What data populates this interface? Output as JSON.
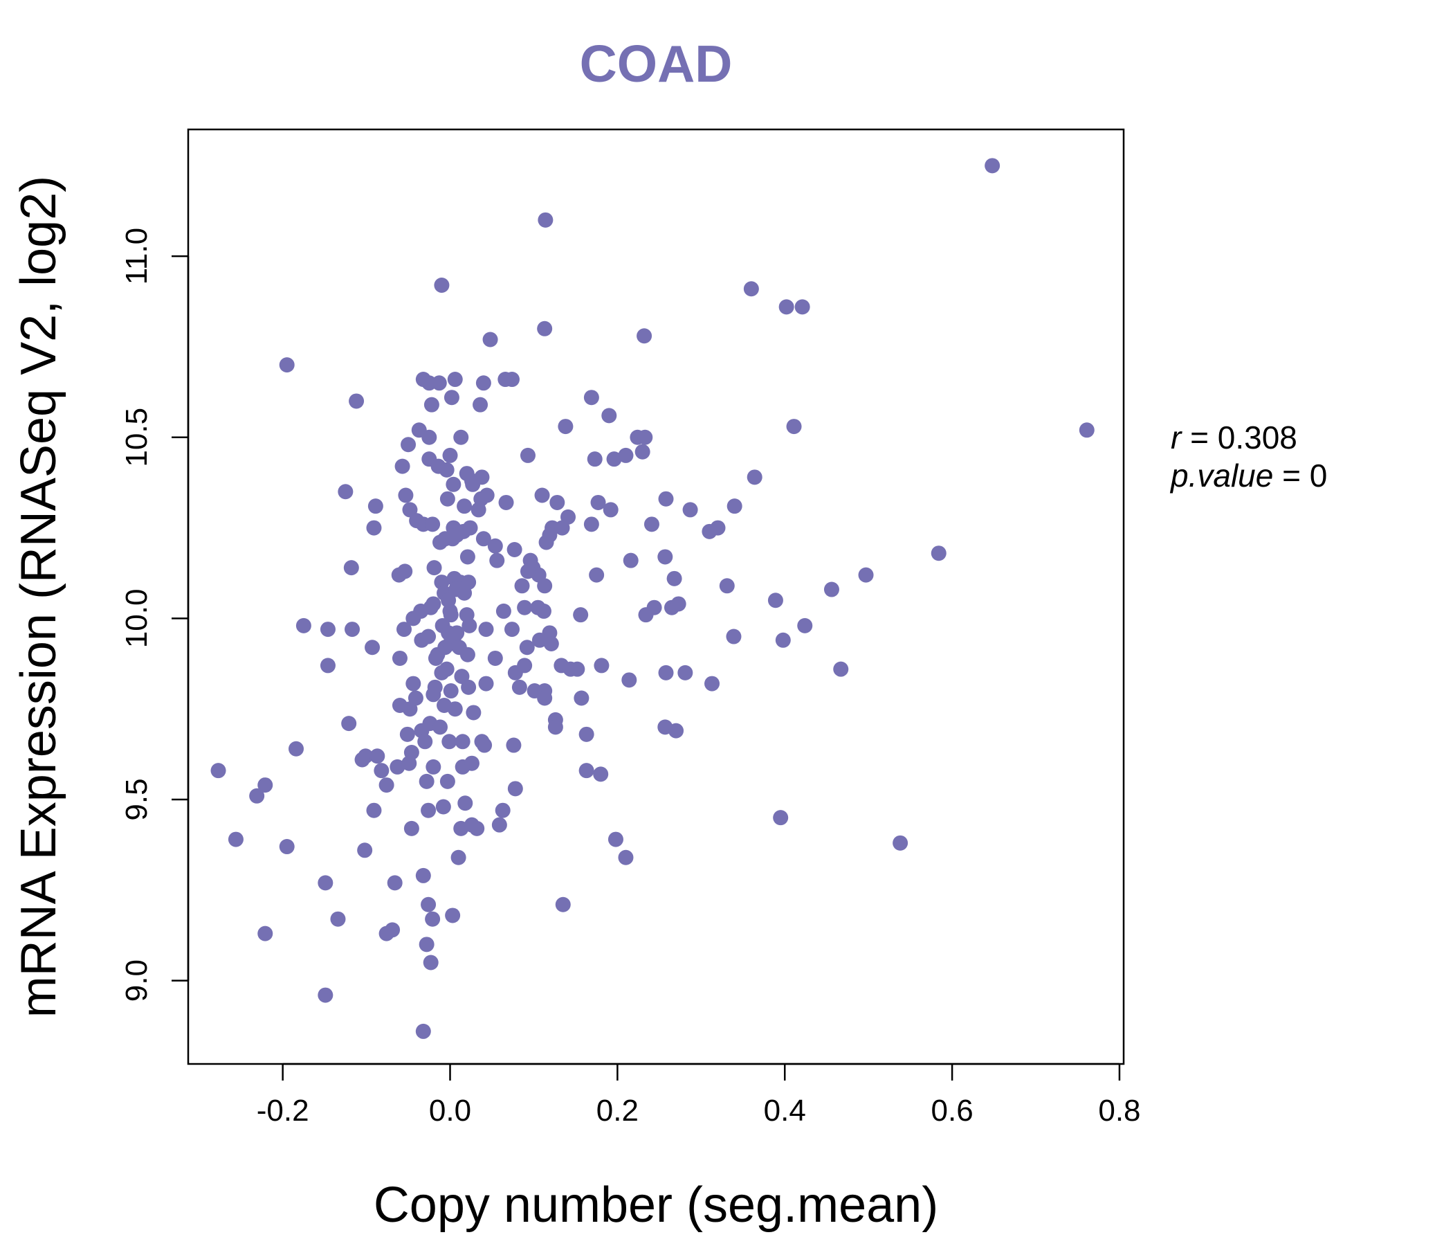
{
  "colors": {
    "point": "#7570b3",
    "title": "#7570b3",
    "axis": "#000000"
  },
  "stats": {
    "r_label": "r",
    "r_value": "0.308",
    "p_label": "p.value",
    "p_value": "0"
  },
  "chart_data": {
    "type": "scatter",
    "title": "COAD",
    "xlabel": "Copy number (seg.mean)",
    "ylabel": "mRNA Expression (RNASeq V2, log2)",
    "xlim": [
      -0.313,
      0.805
    ],
    "ylim": [
      8.77,
      11.35
    ],
    "x_ticks": [
      -0.2,
      0.0,
      0.2,
      0.4,
      0.6,
      0.8
    ],
    "x_tick_labels": [
      "-0.2",
      "0.0",
      "0.2",
      "0.4",
      "0.6",
      "0.8"
    ],
    "y_ticks": [
      9.0,
      9.5,
      10.0,
      10.5,
      11.0
    ],
    "y_tick_labels": [
      "9.0",
      "9.5",
      "10.0",
      "10.5",
      "11.0"
    ],
    "grid": false,
    "points": [
      [
        0.648,
        11.25
      ],
      [
        0.114,
        11.1
      ],
      [
        -0.01,
        10.92
      ],
      [
        0.36,
        10.91
      ],
      [
        0.402,
        10.86
      ],
      [
        0.421,
        10.86
      ],
      [
        -0.195,
        10.7
      ],
      [
        0.113,
        10.8
      ],
      [
        0.232,
        10.78
      ],
      [
        0.048,
        10.77
      ],
      [
        -0.032,
        10.66
      ],
      [
        -0.025,
        10.65
      ],
      [
        -0.013,
        10.65
      ],
      [
        0.006,
        10.66
      ],
      [
        0.04,
        10.65
      ],
      [
        0.066,
        10.66
      ],
      [
        0.074,
        10.66
      ],
      [
        -0.112,
        10.6
      ],
      [
        -0.022,
        10.59
      ],
      [
        0.002,
        10.61
      ],
      [
        0.036,
        10.59
      ],
      [
        0.169,
        10.61
      ],
      [
        0.19,
        10.56
      ],
      [
        0.411,
        10.53
      ],
      [
        0.761,
        10.52
      ],
      [
        -0.037,
        10.52
      ],
      [
        -0.025,
        10.5
      ],
      [
        -0.05,
        10.48
      ],
      [
        0.013,
        10.5
      ],
      [
        0.138,
        10.53
      ],
      [
        0.224,
        10.5
      ],
      [
        0.233,
        10.5
      ],
      [
        0.23,
        10.46
      ],
      [
        -0.057,
        10.42
      ],
      [
        -0.025,
        10.44
      ],
      [
        -0.014,
        10.42
      ],
      [
        -0.004,
        10.41
      ],
      [
        0.0,
        10.45
      ],
      [
        0.02,
        10.4
      ],
      [
        0.026,
        10.38
      ],
      [
        0.038,
        10.39
      ],
      [
        0.093,
        10.45
      ],
      [
        0.173,
        10.44
      ],
      [
        0.196,
        10.44
      ],
      [
        0.21,
        10.45
      ],
      [
        -0.125,
        10.35
      ],
      [
        -0.053,
        10.34
      ],
      [
        0.004,
        10.37
      ],
      [
        0.017,
        10.31
      ],
      [
        0.027,
        10.37
      ],
      [
        0.044,
        10.34
      ],
      [
        0.067,
        10.32
      ],
      [
        0.11,
        10.34
      ],
      [
        0.128,
        10.32
      ],
      [
        0.177,
        10.32
      ],
      [
        0.258,
        10.33
      ],
      [
        0.364,
        10.39
      ],
      [
        -0.089,
        10.31
      ],
      [
        -0.048,
        10.3
      ],
      [
        -0.04,
        10.27
      ],
      [
        -0.032,
        10.26
      ],
      [
        -0.021,
        10.26
      ],
      [
        -0.003,
        10.33
      ],
      [
        0.004,
        10.25
      ],
      [
        0.016,
        10.24
      ],
      [
        0.024,
        10.25
      ],
      [
        0.034,
        10.3
      ],
      [
        0.037,
        10.33
      ],
      [
        0.141,
        10.28
      ],
      [
        0.169,
        10.26
      ],
      [
        0.192,
        10.3
      ],
      [
        0.241,
        10.26
      ],
      [
        0.287,
        10.3
      ],
      [
        0.31,
        10.24
      ],
      [
        0.32,
        10.25
      ],
      [
        0.34,
        10.31
      ],
      [
        -0.091,
        10.25
      ],
      [
        -0.012,
        10.21
      ],
      [
        -0.006,
        10.22
      ],
      [
        0.003,
        10.22
      ],
      [
        0.008,
        10.23
      ],
      [
        0.04,
        10.22
      ],
      [
        0.054,
        10.2
      ],
      [
        0.077,
        10.19
      ],
      [
        0.115,
        10.21
      ],
      [
        0.122,
        10.25
      ],
      [
        0.134,
        10.25
      ],
      [
        0.119,
        10.23
      ],
      [
        0.257,
        10.17
      ],
      [
        0.584,
        10.18
      ],
      [
        -0.118,
        10.14
      ],
      [
        -0.061,
        10.12
      ],
      [
        -0.054,
        10.13
      ],
      [
        -0.019,
        10.14
      ],
      [
        -0.01,
        10.1
      ],
      [
        0.005,
        10.11
      ],
      [
        0.012,
        10.1
      ],
      [
        0.021,
        10.17
      ],
      [
        0.022,
        10.1
      ],
      [
        0.056,
        10.16
      ],
      [
        0.096,
        10.16
      ],
      [
        0.099,
        10.14
      ],
      [
        0.106,
        10.12
      ],
      [
        0.093,
        10.13
      ],
      [
        0.175,
        10.12
      ],
      [
        0.216,
        10.16
      ],
      [
        0.497,
        10.12
      ],
      [
        -0.007,
        10.07
      ],
      [
        -0.002,
        10.05
      ],
      [
        0.007,
        10.08
      ],
      [
        0.017,
        10.07
      ],
      [
        0.086,
        10.09
      ],
      [
        0.113,
        10.09
      ],
      [
        0.268,
        10.11
      ],
      [
        0.331,
        10.09
      ],
      [
        0.456,
        10.08
      ],
      [
        0.244,
        10.03
      ],
      [
        0.265,
        10.03
      ],
      [
        0.273,
        10.04
      ],
      [
        0.389,
        10.05
      ],
      [
        -0.035,
        10.02
      ],
      [
        -0.023,
        10.03
      ],
      [
        -0.02,
        10.04
      ],
      [
        0.0,
        10.02
      ],
      [
        0.001,
        10.01
      ],
      [
        0.02,
        10.01
      ],
      [
        0.064,
        10.02
      ],
      [
        0.089,
        10.03
      ],
      [
        0.105,
        10.03
      ],
      [
        0.112,
        10.02
      ],
      [
        0.156,
        10.01
      ],
      [
        0.234,
        10.01
      ],
      [
        -0.044,
        10.0
      ],
      [
        -0.175,
        9.98
      ],
      [
        -0.146,
        9.97
      ],
      [
        -0.117,
        9.97
      ],
      [
        -0.055,
        9.97
      ],
      [
        -0.009,
        9.98
      ],
      [
        -0.002,
        9.96
      ],
      [
        0.008,
        9.96
      ],
      [
        0.023,
        9.98
      ],
      [
        0.043,
        9.97
      ],
      [
        0.074,
        9.97
      ],
      [
        0.119,
        9.96
      ],
      [
        0.424,
        9.98
      ],
      [
        -0.093,
        9.92
      ],
      [
        -0.06,
        9.89
      ],
      [
        -0.034,
        9.94
      ],
      [
        -0.026,
        9.95
      ],
      [
        -0.015,
        9.9
      ],
      [
        -0.006,
        9.92
      ],
      [
        0.0,
        9.93
      ],
      [
        0.005,
        9.95
      ],
      [
        0.011,
        9.92
      ],
      [
        0.021,
        9.9
      ],
      [
        0.054,
        9.89
      ],
      [
        0.092,
        9.92
      ],
      [
        0.107,
        9.94
      ],
      [
        0.121,
        9.93
      ],
      [
        0.339,
        9.95
      ],
      [
        0.398,
        9.94
      ],
      [
        -0.146,
        9.87
      ],
      [
        -0.017,
        9.89
      ],
      [
        -0.01,
        9.85
      ],
      [
        -0.004,
        9.86
      ],
      [
        0.014,
        9.84
      ],
      [
        0.078,
        9.85
      ],
      [
        0.089,
        9.87
      ],
      [
        0.133,
        9.87
      ],
      [
        0.144,
        9.86
      ],
      [
        0.152,
        9.86
      ],
      [
        0.181,
        9.87
      ],
      [
        0.258,
        9.85
      ],
      [
        0.281,
        9.85
      ],
      [
        0.467,
        9.86
      ],
      [
        -0.044,
        9.82
      ],
      [
        -0.018,
        9.81
      ],
      [
        0.001,
        9.8
      ],
      [
        0.022,
        9.81
      ],
      [
        0.043,
        9.82
      ],
      [
        0.083,
        9.81
      ],
      [
        0.101,
        9.8
      ],
      [
        0.113,
        9.8
      ],
      [
        0.157,
        9.78
      ],
      [
        0.214,
        9.83
      ],
      [
        0.313,
        9.82
      ],
      [
        -0.06,
        9.76
      ],
      [
        -0.048,
        9.75
      ],
      [
        -0.041,
        9.78
      ],
      [
        -0.02,
        9.79
      ],
      [
        -0.007,
        9.76
      ],
      [
        0.006,
        9.75
      ],
      [
        0.028,
        9.74
      ],
      [
        0.113,
        9.78
      ],
      [
        0.126,
        9.72
      ],
      [
        -0.121,
        9.71
      ],
      [
        -0.051,
        9.68
      ],
      [
        -0.034,
        9.69
      ],
      [
        -0.024,
        9.71
      ],
      [
        -0.012,
        9.7
      ],
      [
        0.126,
        9.7
      ],
      [
        0.257,
        9.7
      ],
      [
        0.27,
        9.69
      ],
      [
        0.163,
        9.68
      ],
      [
        -0.184,
        9.64
      ],
      [
        -0.101,
        9.62
      ],
      [
        -0.087,
        9.62
      ],
      [
        -0.046,
        9.63
      ],
      [
        -0.03,
        9.66
      ],
      [
        -0.001,
        9.66
      ],
      [
        0.015,
        9.66
      ],
      [
        0.038,
        9.66
      ],
      [
        0.041,
        9.65
      ],
      [
        0.076,
        9.65
      ],
      [
        -0.277,
        9.58
      ],
      [
        -0.105,
        9.61
      ],
      [
        -0.082,
        9.58
      ],
      [
        -0.063,
        9.59
      ],
      [
        -0.049,
        9.6
      ],
      [
        -0.02,
        9.59
      ],
      [
        -0.003,
        9.55
      ],
      [
        0.015,
        9.59
      ],
      [
        0.026,
        9.6
      ],
      [
        0.163,
        9.58
      ],
      [
        0.18,
        9.57
      ],
      [
        -0.221,
        9.54
      ],
      [
        -0.231,
        9.51
      ],
      [
        -0.076,
        9.54
      ],
      [
        -0.028,
        9.55
      ],
      [
        0.078,
        9.53
      ],
      [
        -0.091,
        9.47
      ],
      [
        -0.026,
        9.47
      ],
      [
        -0.008,
        9.48
      ],
      [
        0.018,
        9.49
      ],
      [
        0.063,
        9.47
      ],
      [
        -0.256,
        9.39
      ],
      [
        -0.195,
        9.37
      ],
      [
        -0.102,
        9.36
      ],
      [
        -0.046,
        9.42
      ],
      [
        0.013,
        9.42
      ],
      [
        0.026,
        9.43
      ],
      [
        0.032,
        9.42
      ],
      [
        0.059,
        9.43
      ],
      [
        0.198,
        9.39
      ],
      [
        0.21,
        9.34
      ],
      [
        0.395,
        9.45
      ],
      [
        0.538,
        9.38
      ],
      [
        0.01,
        9.34
      ],
      [
        -0.149,
        9.27
      ],
      [
        -0.066,
        9.27
      ],
      [
        -0.032,
        9.29
      ],
      [
        -0.134,
        9.17
      ],
      [
        -0.026,
        9.21
      ],
      [
        -0.021,
        9.17
      ],
      [
        0.003,
        9.18
      ],
      [
        0.135,
        9.21
      ],
      [
        -0.221,
        9.13
      ],
      [
        -0.076,
        9.13
      ],
      [
        -0.069,
        9.14
      ],
      [
        -0.028,
        9.1
      ],
      [
        -0.023,
        9.05
      ],
      [
        -0.149,
        8.96
      ],
      [
        -0.032,
        8.86
      ]
    ]
  }
}
